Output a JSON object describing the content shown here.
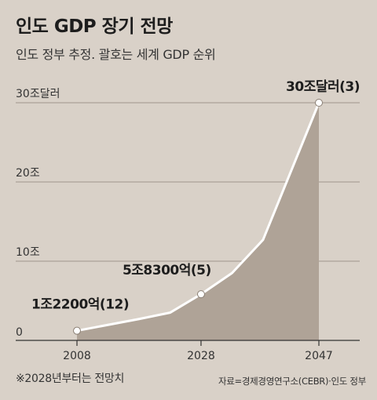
{
  "title": "인도 GDP 장기 전망",
  "subtitle": "인도 정부 추정. 괄호는 세계 GDP 순위",
  "footnote": "※2028년부터는 전망치",
  "source": "자료=경제경영연구소(CEBR)·인도 정부",
  "colors": {
    "background": "#d9d1c8",
    "area": "#afa397",
    "line": "#ffffff",
    "gridline": "#9e958b",
    "text": "#222222"
  },
  "chart_data": {
    "type": "area",
    "x": [
      2008,
      2018,
      2023,
      2028,
      2033,
      2038,
      2047
    ],
    "values": [
      1.22,
      2.7,
      3.5,
      5.83,
      8.5,
      12.7,
      30
    ],
    "ylim": [
      0,
      30
    ],
    "xlim": [
      2008,
      2047
    ],
    "y_ticks": [
      {
        "value": 0,
        "label": "0"
      },
      {
        "value": 10,
        "label": "10조"
      },
      {
        "value": 20,
        "label": "20조"
      },
      {
        "value": 30,
        "label": "30조달러"
      }
    ],
    "x_ticks": [
      {
        "value": 2008,
        "label": "2008"
      },
      {
        "value": 2028,
        "label": "2028"
      },
      {
        "value": 2047,
        "label": "2047"
      }
    ],
    "annotations": [
      {
        "x": 2008,
        "y": 1.22,
        "text": "1조2200억(12)"
      },
      {
        "x": 2028,
        "y": 5.83,
        "text": "5조8300억(5)"
      },
      {
        "x": 2047,
        "y": 30,
        "text": "30조달러(3)"
      }
    ],
    "grid": true
  }
}
